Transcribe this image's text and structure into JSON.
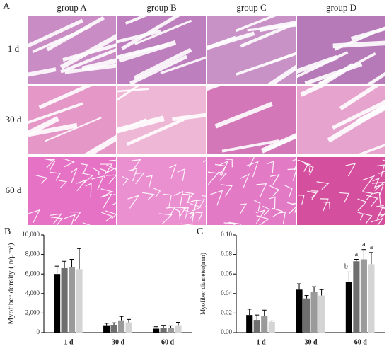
{
  "panel_a": {
    "label": "A",
    "columns": [
      "group A",
      "group B",
      "group C",
      "group D"
    ],
    "rows": [
      "1 d",
      "30 d",
      "60 d"
    ]
  },
  "chart_data": [
    {
      "type": "bar",
      "label": "B",
      "ylabel": "Myofiber density ( n/μm²)",
      "categories": [
        "1 d",
        "30 d",
        "60 d"
      ],
      "ylim": [
        0,
        10000
      ],
      "yticks": [
        0,
        {
          "value": 2000,
          "label": "2,000"
        },
        {
          "value": 4000,
          "label": "4,000"
        },
        {
          "value": 6000,
          "label": "6,000"
        },
        {
          "value": 8000,
          "label": "8,000"
        },
        {
          "value": 10000,
          "label": "10,000"
        }
      ],
      "series": [
        {
          "color": "#000000",
          "values": [
            6000,
            750,
            400
          ],
          "errors": [
            800,
            200,
            200
          ]
        },
        {
          "color": "#6e6e6e",
          "values": [
            6600,
            800,
            500
          ],
          "errors": [
            700,
            200,
            250
          ]
        },
        {
          "color": "#9a9a9a",
          "values": [
            6700,
            1250,
            500
          ],
          "errors": [
            800,
            400,
            200
          ]
        },
        {
          "color": "#d4d4d4",
          "values": [
            6500,
            1050,
            750
          ],
          "errors": [
            2100,
            300,
            300
          ]
        }
      ]
    },
    {
      "type": "bar",
      "label": "C",
      "ylabel": "Myofiber diameter(mm)",
      "categories": [
        "1 d",
        "30 d",
        "60 d"
      ],
      "ylim": [
        0,
        0.1
      ],
      "yticks": [
        {
          "value": 0,
          "label": "0.00"
        },
        {
          "value": 0.02,
          "label": "0.02"
        },
        {
          "value": 0.04,
          "label": "0.04"
        },
        {
          "value": 0.06,
          "label": "0.06"
        },
        {
          "value": 0.08,
          "label": "0.08"
        },
        {
          "value": 0.1,
          "label": "0.10"
        }
      ],
      "series": [
        {
          "color": "#000000",
          "values": [
            0.018,
            0.044,
            0.052
          ],
          "errors": [
            0.006,
            0.006,
            0.01
          ],
          "labels": [
            null,
            null,
            "b"
          ]
        },
        {
          "color": "#6e6e6e",
          "values": [
            0.013,
            0.035,
            0.073
          ],
          "errors": [
            0.005,
            0.003,
            0.002
          ],
          "labels": [
            null,
            null,
            "a"
          ]
        },
        {
          "color": "#9a9a9a",
          "values": [
            0.017,
            0.042,
            0.075
          ],
          "errors": [
            0.006,
            0.005,
            0.01
          ],
          "labels": [
            null,
            null,
            "a"
          ]
        },
        {
          "color": "#d4d4d4",
          "values": [
            0.011,
            0.038,
            0.07
          ],
          "errors": [
            0.001,
            0.006,
            0.012
          ],
          "labels": [
            null,
            null,
            "a"
          ]
        }
      ]
    }
  ]
}
